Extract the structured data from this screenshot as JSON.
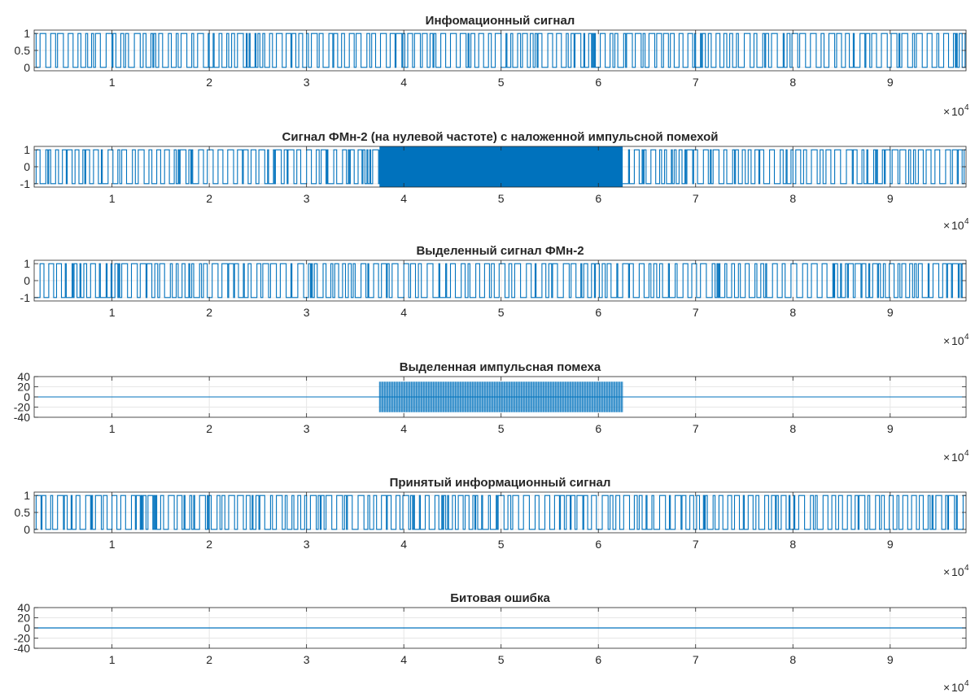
{
  "figure": {
    "background": "#ffffff",
    "line_color": "#0072bd",
    "grid_color": "#e6e6e6",
    "axis_color": "#262626"
  },
  "chart_data": [
    {
      "type": "line",
      "title": "Инфомационный сигнал",
      "xlim": [
        2000,
        97800
      ],
      "ylim": [
        -0.1,
        1.1
      ],
      "xticks": [
        "1",
        "2",
        "3",
        "4",
        "5",
        "6",
        "7",
        "8",
        "9"
      ],
      "xtick_values": [
        10000,
        20000,
        30000,
        40000,
        50000,
        60000,
        70000,
        80000,
        90000
      ],
      "yticks": [
        "1",
        "0.5",
        "0"
      ],
      "ytick_values": [
        1,
        0.5,
        0
      ],
      "x_exponent": "10",
      "x_exponent_power": "4",
      "grid": true,
      "series": [
        {
          "kind": "binary",
          "levels": [
            0,
            1
          ]
        }
      ]
    },
    {
      "type": "line",
      "title": "Сигнал ФМн-2 (на нулевой частоте) с наложенной импульсной помехой",
      "xlim": [
        2000,
        97800
      ],
      "ylim": [
        -1.2,
        1.2
      ],
      "xticks": [
        "1",
        "2",
        "3",
        "4",
        "5",
        "6",
        "7",
        "8",
        "9"
      ],
      "xtick_values": [
        10000,
        20000,
        30000,
        40000,
        50000,
        60000,
        70000,
        80000,
        90000
      ],
      "yticks": [
        "1",
        "0",
        "-1"
      ],
      "ytick_values": [
        1,
        0,
        -1
      ],
      "x_exponent": "10",
      "x_exponent_power": "4",
      "grid": true,
      "series": [
        {
          "kind": "binary",
          "levels": [
            -1,
            1
          ],
          "interference_x": [
            37500,
            62500
          ],
          "interference_amplitude": 1.2
        }
      ]
    },
    {
      "type": "line",
      "title": "Выделенный сигнал ФМн-2",
      "xlim": [
        2000,
        97800
      ],
      "ylim": [
        -1.2,
        1.2
      ],
      "xticks": [
        "1",
        "2",
        "3",
        "4",
        "5",
        "6",
        "7",
        "8",
        "9"
      ],
      "xtick_values": [
        10000,
        20000,
        30000,
        40000,
        50000,
        60000,
        70000,
        80000,
        90000
      ],
      "yticks": [
        "1",
        "0",
        "-1"
      ],
      "ytick_values": [
        1,
        0,
        -1
      ],
      "x_exponent": "10",
      "x_exponent_power": "4",
      "grid": true,
      "series": [
        {
          "kind": "binary",
          "levels": [
            -1,
            1
          ]
        }
      ]
    },
    {
      "type": "line",
      "title": "Выделенная импульсная помеха",
      "xlim": [
        2000,
        97800
      ],
      "ylim": [
        -40,
        40
      ],
      "xticks": [
        "1",
        "2",
        "3",
        "4",
        "5",
        "6",
        "7",
        "8",
        "9"
      ],
      "xtick_values": [
        10000,
        20000,
        30000,
        40000,
        50000,
        60000,
        70000,
        80000,
        90000
      ],
      "yticks": [
        "40",
        "20",
        "0",
        "-20",
        "-40"
      ],
      "ytick_values": [
        40,
        20,
        0,
        -20,
        -40
      ],
      "x_exponent": "10",
      "x_exponent_power": "4",
      "grid": true,
      "series": [
        {
          "kind": "burst",
          "baseline": 0,
          "burst_x": [
            37500,
            62500
          ],
          "burst_amplitude": 30
        }
      ]
    },
    {
      "type": "line",
      "title": "Принятый информационный сигнал",
      "xlim": [
        2000,
        97800
      ],
      "ylim": [
        -0.1,
        1.1
      ],
      "xticks": [
        "1",
        "2",
        "3",
        "4",
        "5",
        "6",
        "7",
        "8",
        "9"
      ],
      "xtick_values": [
        10000,
        20000,
        30000,
        40000,
        50000,
        60000,
        70000,
        80000,
        90000
      ],
      "yticks": [
        "1",
        "0.5",
        "0"
      ],
      "ytick_values": [
        1,
        0.5,
        0
      ],
      "x_exponent": "10",
      "x_exponent_power": "4",
      "grid": true,
      "series": [
        {
          "kind": "binary",
          "levels": [
            0,
            1
          ]
        }
      ]
    },
    {
      "type": "line",
      "title": "Битовая ошибка",
      "xlim": [
        2000,
        97800
      ],
      "ylim": [
        -40,
        40
      ],
      "xticks": [
        "1",
        "2",
        "3",
        "4",
        "5",
        "6",
        "7",
        "8",
        "9"
      ],
      "xtick_values": [
        10000,
        20000,
        30000,
        40000,
        50000,
        60000,
        70000,
        80000,
        90000
      ],
      "yticks": [
        "40",
        "20",
        "0",
        "-20",
        "-40"
      ],
      "ytick_values": [
        40,
        20,
        0,
        -20,
        -40
      ],
      "x_exponent": "10",
      "x_exponent_power": "4",
      "grid": true,
      "series": [
        {
          "kind": "constant",
          "value": 0
        }
      ]
    }
  ]
}
